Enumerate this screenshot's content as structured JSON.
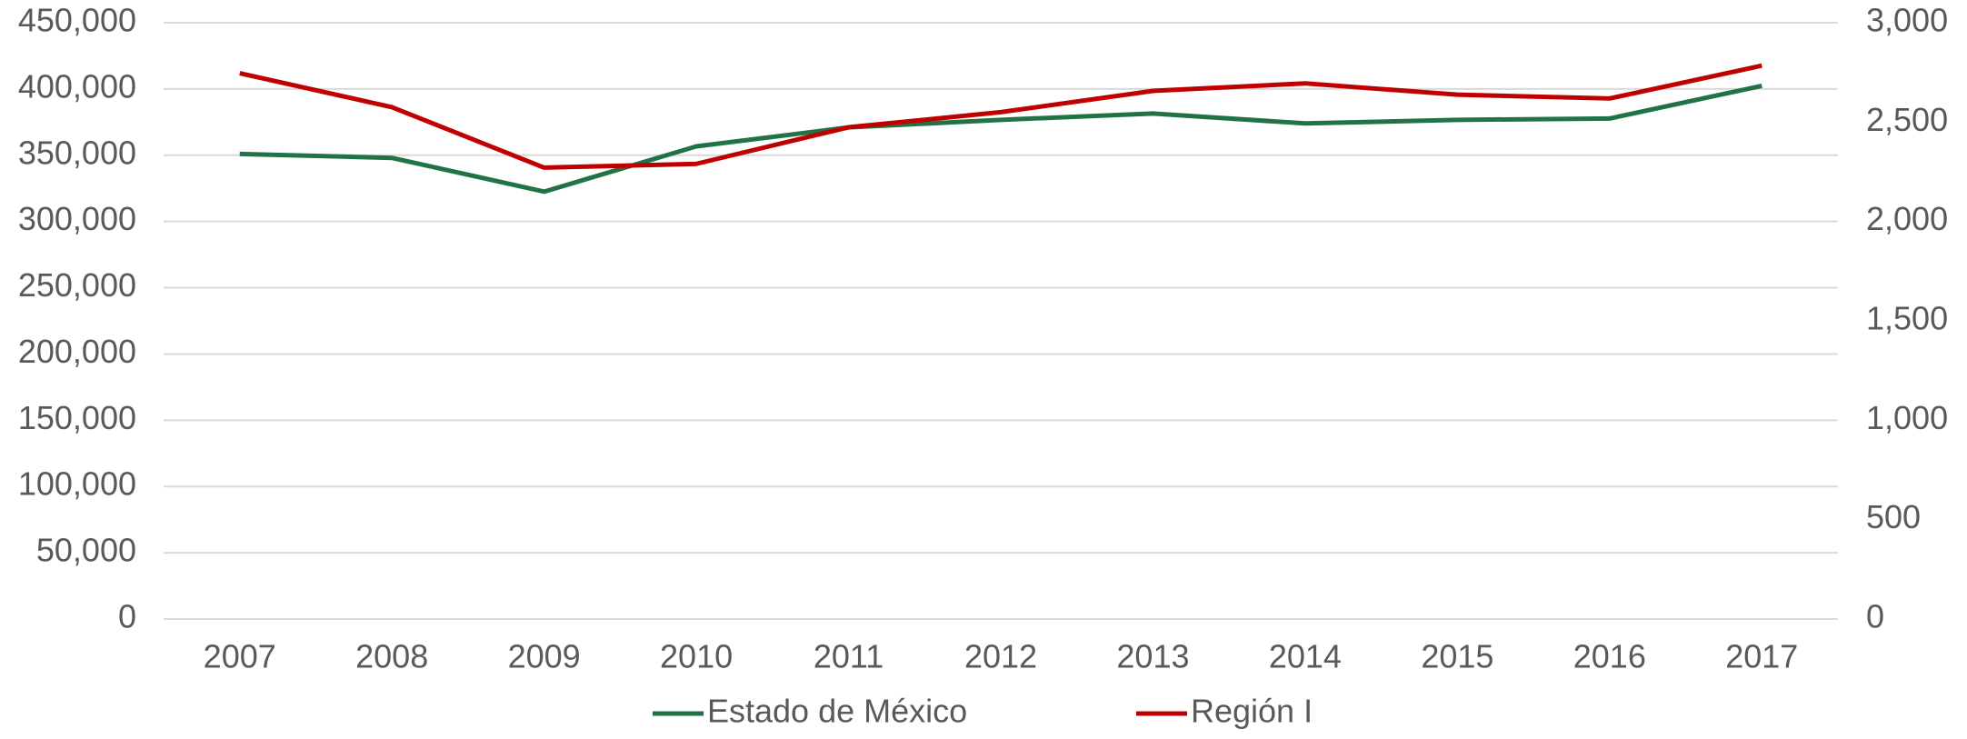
{
  "chart_data": {
    "type": "line",
    "categories": [
      "2007",
      "2008",
      "2009",
      "2010",
      "2011",
      "2012",
      "2013",
      "2014",
      "2015",
      "2016",
      "2017"
    ],
    "series": [
      {
        "name": "Estado de México",
        "color": "#217346",
        "values": [
          351000,
          348000,
          322500,
          356700,
          371000,
          376700,
          381500,
          374000,
          376700,
          377700,
          402400
        ]
      },
      {
        "name": "Región I",
        "color": "#c00000",
        "axis": "y2",
        "values": [
          2746,
          2575,
          2271,
          2290,
          2474,
          2550,
          2657,
          2695,
          2638,
          2619,
          2784
        ]
      }
    ],
    "ylim": [
      0,
      450000
    ],
    "yticks": [
      0,
      {
        "value": 50000,
        "label": "50,000"
      },
      {
        "value": 100000,
        "label": "100,000"
      },
      {
        "value": 150000,
        "label": "150,000"
      },
      {
        "value": 200000,
        "label": "200,000"
      },
      {
        "value": 250000,
        "label": "250,000"
      },
      {
        "value": 300000,
        "label": "300,000"
      },
      {
        "value": 350000,
        "label": "350,000"
      },
      {
        "value": 400000,
        "label": "400,000"
      },
      {
        "value": 450000,
        "label": "450,000"
      }
    ],
    "y2lim": [
      0,
      3000
    ],
    "y2ticks": [
      0,
      500,
      {
        "value": 1000,
        "label": "1,000"
      },
      {
        "value": 1500,
        "label": "1,500"
      },
      {
        "value": 2000,
        "label": "2,000"
      },
      {
        "value": 2500,
        "label": "2,500"
      },
      {
        "value": 3000,
        "label": "3,000"
      }
    ],
    "grid": true,
    "legend": "bottom"
  }
}
